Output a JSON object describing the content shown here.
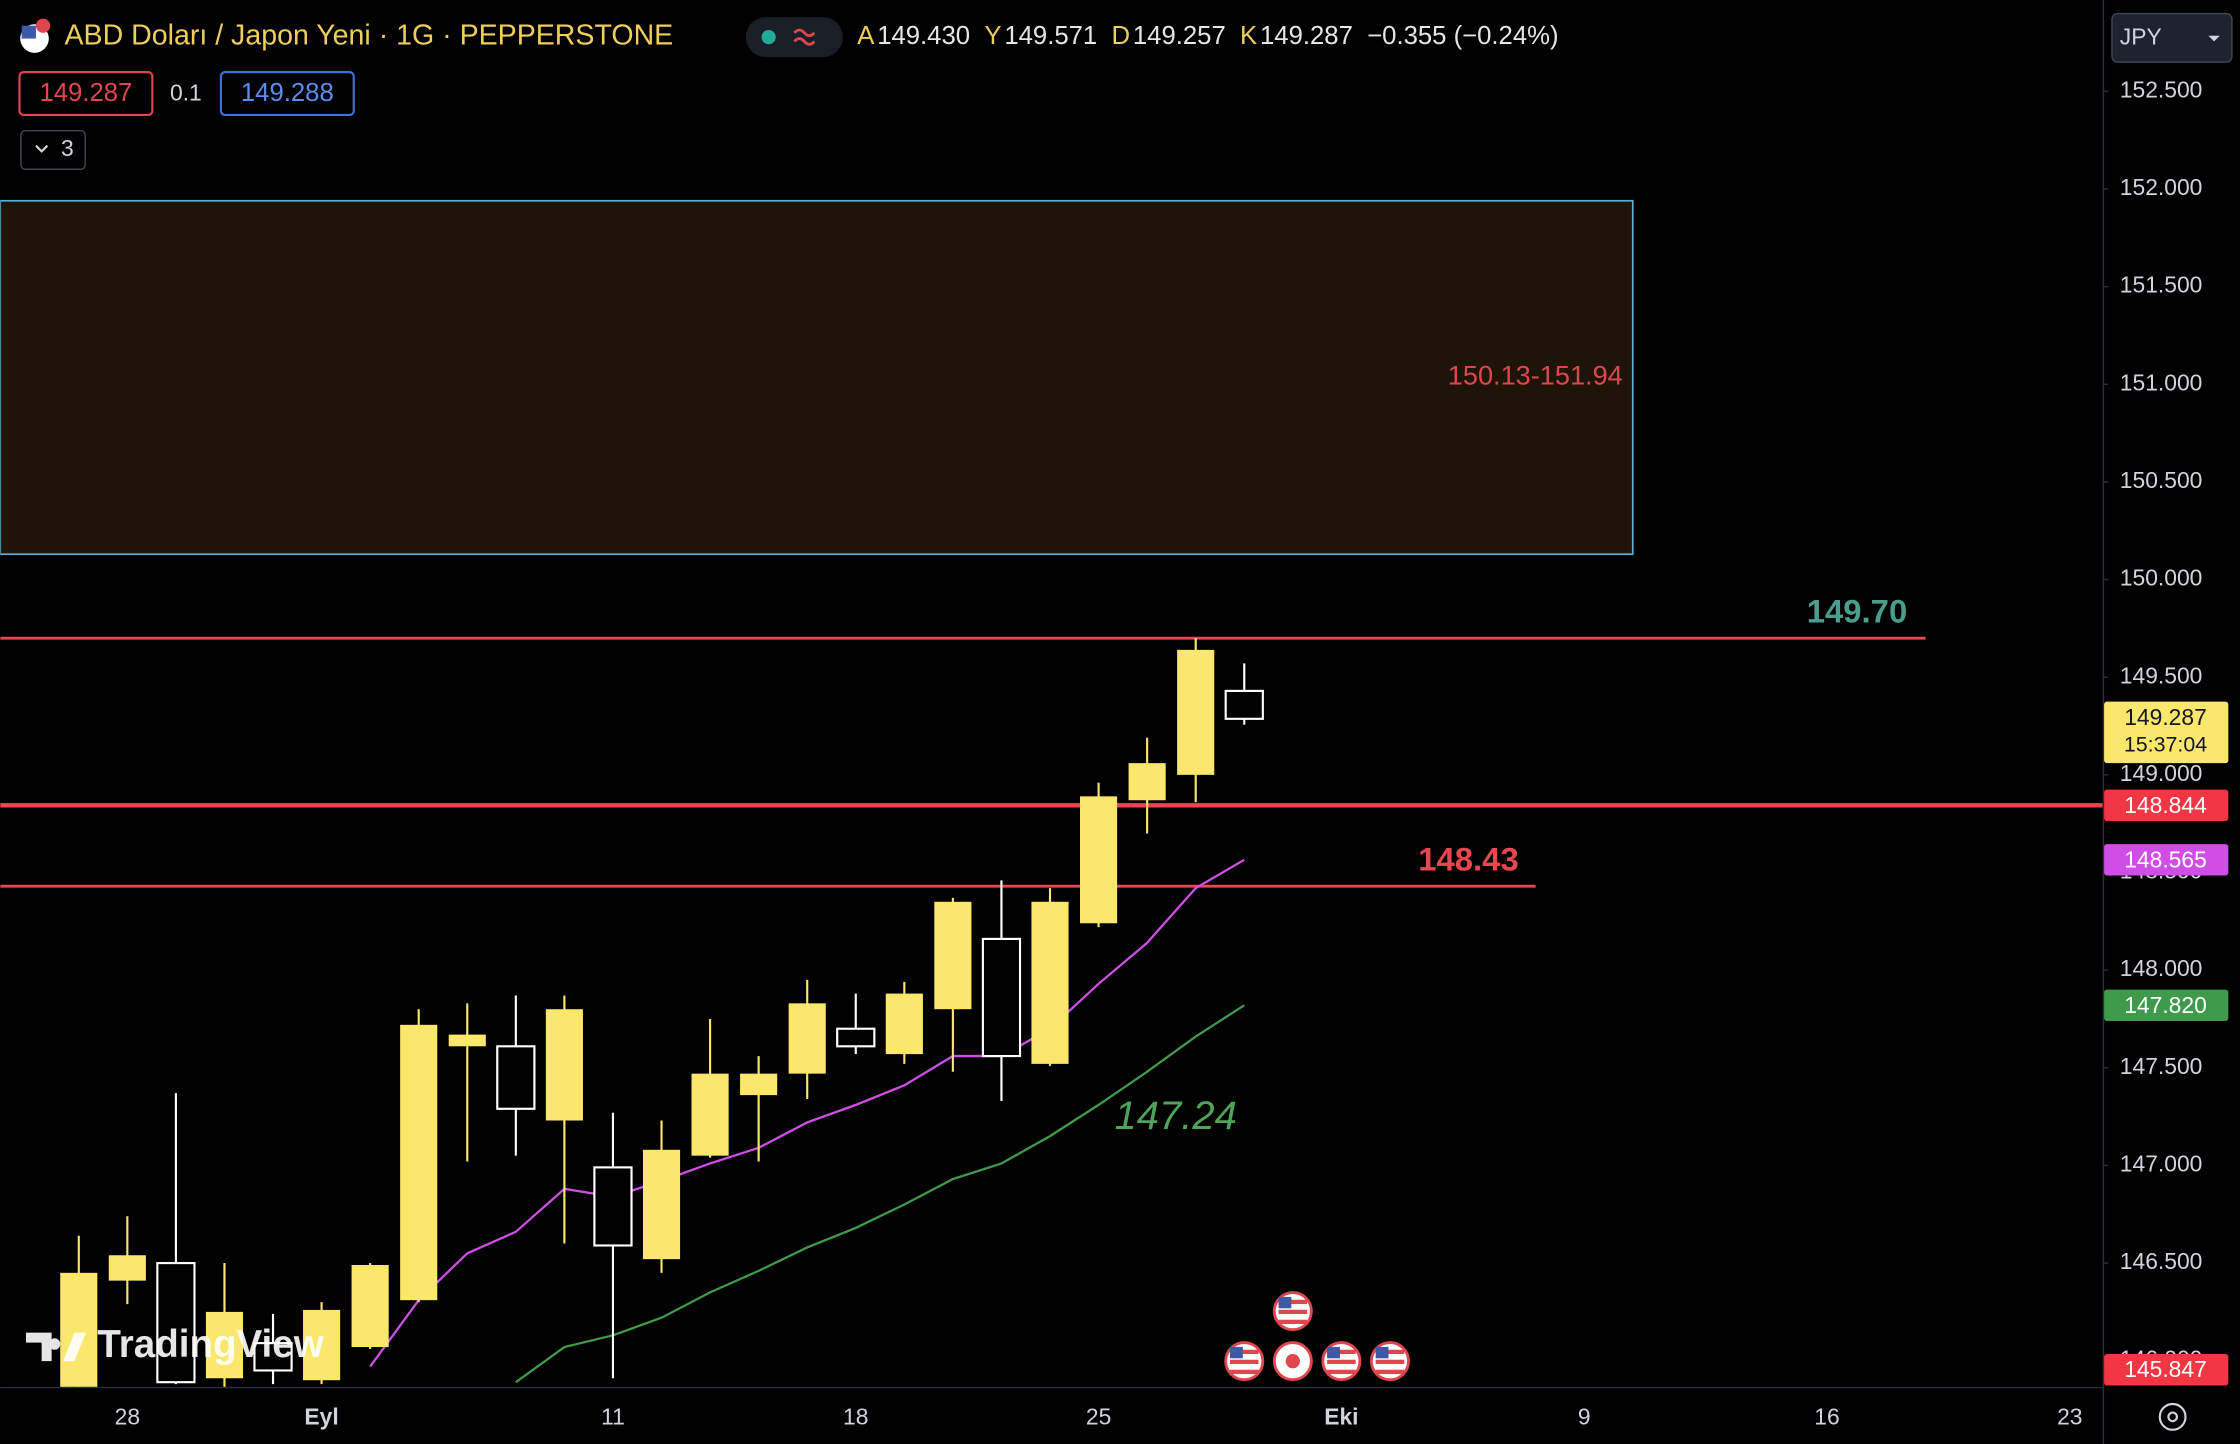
{
  "header": {
    "symbol": "ABD Doları / Japon Yeni · 1G · PEPPERSTONE",
    "ohlc": [
      {
        "key": "A",
        "value": "149.430"
      },
      {
        "key": "Y",
        "value": "149.571"
      },
      {
        "key": "D",
        "value": "149.257"
      },
      {
        "key": "K",
        "value": "149.287"
      }
    ],
    "change": "−0.355 (−0.24%)",
    "sell": "149.287",
    "spread": "0.1",
    "buy": "149.288",
    "indicators": "3",
    "currency": "JPY",
    "logo": "TradingView"
  },
  "chart_data": {
    "type": "candlestick",
    "categories": [
      null,
      "28",
      null,
      null,
      null,
      "Eyl",
      null,
      null,
      null,
      null,
      null,
      "11",
      null,
      null,
      null,
      null,
      "18",
      null,
      null,
      null,
      null,
      "25",
      null,
      null,
      null,
      null,
      "Eki",
      null,
      null,
      null,
      null,
      "9",
      null,
      null,
      null,
      null,
      "16",
      null,
      null,
      null,
      null,
      "23"
    ],
    "open": [
      145.8,
      146.41,
      146.5,
      145.91,
      146.09,
      145.9,
      146.07,
      146.31,
      147.61,
      147.61,
      147.23,
      146.99,
      146.52,
      147.05,
      147.36,
      147.47,
      147.7,
      147.57,
      147.8,
      148.16,
      147.52,
      148.24,
      148.87,
      149.0,
      149.43,
      null,
      null,
      null,
      null,
      null,
      null,
      null,
      null,
      null,
      null,
      null,
      null,
      null,
      null,
      null,
      null,
      null
    ],
    "high": [
      146.64,
      146.74,
      147.37,
      146.5,
      146.24,
      146.3,
      146.5,
      147.8,
      147.83,
      147.87,
      147.87,
      147.27,
      147.23,
      147.75,
      147.56,
      147.95,
      147.88,
      147.94,
      148.37,
      148.46,
      148.42,
      148.96,
      149.19,
      149.7,
      149.571,
      null,
      null,
      null,
      null,
      null,
      null,
      null,
      null,
      null,
      null,
      null,
      null,
      null,
      null,
      null,
      null,
      null
    ],
    "low": [
      145.75,
      146.29,
      145.88,
      145.85,
      145.88,
      145.88,
      146.06,
      146.3,
      147.02,
      147.05,
      146.6,
      145.91,
      146.45,
      147.04,
      147.02,
      147.34,
      147.57,
      147.52,
      147.48,
      147.33,
      147.51,
      148.22,
      148.7,
      148.86,
      149.257,
      null,
      null,
      null,
      null,
      null,
      null,
      null,
      null,
      null,
      null,
      null,
      null,
      null,
      null,
      null,
      null,
      null
    ],
    "close": [
      146.45,
      146.54,
      145.89,
      146.25,
      145.95,
      146.26,
      146.49,
      147.72,
      147.67,
      147.29,
      147.8,
      146.59,
      147.08,
      147.47,
      147.47,
      147.83,
      147.61,
      147.88,
      148.35,
      147.56,
      148.35,
      148.89,
      149.06,
      149.64,
      149.287,
      null,
      null,
      null,
      null,
      null,
      null,
      null,
      null,
      null,
      null,
      null,
      null,
      null,
      null,
      null,
      null,
      null
    ],
    "up_color": "#fbe76c",
    "down_color": "#ffffff",
    "ylim": [
      145.866,
      152.968
    ],
    "yticks": [
      {
        "value": 146,
        "label": "146.000"
      },
      {
        "value": 146.5,
        "label": "146.500"
      },
      {
        "value": 147,
        "label": "147.000"
      },
      {
        "value": 147.5,
        "label": "147.500"
      },
      {
        "value": 148,
        "label": "148.000"
      },
      {
        "value": 148.5,
        "label": "148.500"
      },
      {
        "value": 149,
        "label": "149.000"
      },
      {
        "value": 149.5,
        "label": "149.500"
      },
      {
        "value": 150,
        "label": "150.000"
      },
      {
        "value": 150.5,
        "label": "150.500"
      },
      {
        "value": 151,
        "label": "151.000"
      },
      {
        "value": 151.5,
        "label": "151.500"
      },
      {
        "value": 152,
        "label": "152.000"
      },
      {
        "value": 152.5,
        "label": "152.500"
      }
    ],
    "lines": [
      {
        "color": "#cf4fe6",
        "last_label": "148.565",
        "values": [
          null,
          null,
          null,
          null,
          null,
          null,
          145.97,
          146.31,
          146.55,
          146.66,
          146.88,
          146.84,
          146.92,
          147.01,
          147.09,
          147.22,
          147.31,
          147.41,
          147.56,
          147.56,
          147.7,
          147.93,
          148.14,
          148.42,
          148.565,
          null,
          null,
          null,
          null,
          null,
          null,
          null,
          null,
          null,
          null,
          null,
          null,
          null,
          null,
          null,
          null,
          null
        ]
      },
      {
        "color": "#3f9a4c",
        "last_label": "147.820",
        "values": [
          null,
          null,
          null,
          null,
          null,
          null,
          null,
          null,
          null,
          145.89,
          146.07,
          146.13,
          146.22,
          146.35,
          146.46,
          146.58,
          146.68,
          146.8,
          146.93,
          147.01,
          147.15,
          147.31,
          147.48,
          147.66,
          147.82,
          null,
          null,
          null,
          null,
          null,
          null,
          null,
          null,
          null,
          null,
          null,
          null,
          null,
          null,
          null,
          null,
          null
        ]
      }
    ],
    "price_lines": [
      {
        "value": 149.7,
        "label": "149.70",
        "color": "#e8474f",
        "label_color": "#4a9e8b"
      },
      {
        "value": 148.844,
        "label": "148.844",
        "color": "#e8474f",
        "label_color": "#f23645"
      },
      {
        "value": 148.43,
        "label": "148.43",
        "color": "#e8474f",
        "label_color": "#e8474f"
      },
      {
        "value": 145.847,
        "label": "145.847",
        "color": "#e8474f",
        "label_color": "#f23645"
      }
    ],
    "zone": {
      "low": 150.13,
      "high": 151.94,
      "label": "150.13-151.94",
      "color": "#e0464e"
    },
    "annotations": [
      {
        "text": "147.24",
        "value": 147.24,
        "color": "#4fa35a"
      }
    ],
    "last_price": {
      "value": 149.287,
      "label": "149.287",
      "time": "15:37:04",
      "color": "#fbe76c"
    }
  }
}
